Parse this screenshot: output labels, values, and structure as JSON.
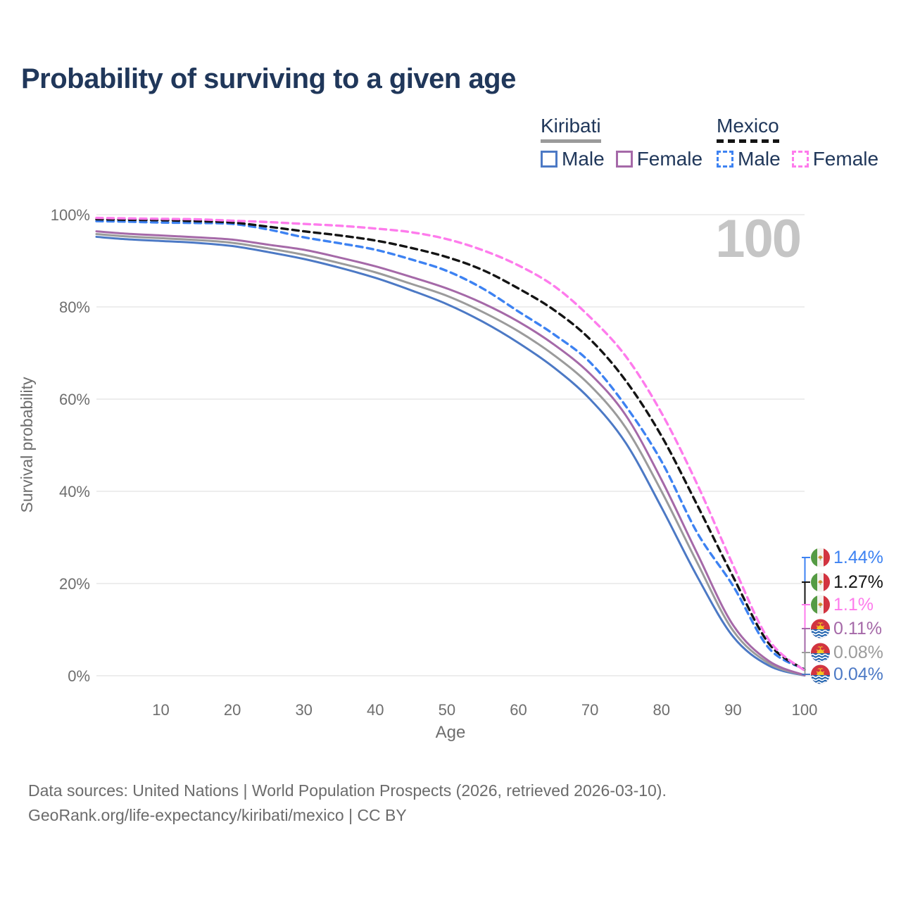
{
  "title": "Probability of surviving to a given age",
  "watermark_age": "100",
  "legend": {
    "groups": [
      {
        "country": "Kiribati",
        "style": "solid",
        "underline_color": "#9b9b9b",
        "items": [
          {
            "label": "Male",
            "color": "#4c79c5"
          },
          {
            "label": "Female",
            "color": "#a569a8"
          }
        ]
      },
      {
        "country": "Mexico",
        "style": "dashed",
        "underline_color": "#141414",
        "items": [
          {
            "label": "Male",
            "color": "#3d82f2"
          },
          {
            "label": "Female",
            "color": "#fe7bec"
          }
        ]
      }
    ]
  },
  "axes": {
    "y_label": "Survival probability",
    "x_label": "Age",
    "y_ticks": [
      "100%",
      "80%",
      "60%",
      "40%",
      "20%",
      "0%"
    ],
    "x_ticks": [
      "10",
      "20",
      "30",
      "40",
      "50",
      "60",
      "70",
      "80",
      "90",
      "100"
    ]
  },
  "chart_data": {
    "type": "line",
    "title": "Probability of surviving to a given age",
    "xlabel": "Age",
    "ylabel": "Survival probability",
    "xlim": [
      1,
      100
    ],
    "ylim": [
      0,
      100
    ],
    "grid": "horizontal",
    "legend_position": "top-right",
    "x": [
      1,
      5,
      10,
      15,
      20,
      25,
      30,
      35,
      40,
      45,
      50,
      55,
      60,
      65,
      70,
      75,
      80,
      85,
      90,
      95,
      100
    ],
    "series": [
      {
        "id": "kiribati-male",
        "name": "Kiribati Male",
        "color": "#4c79c5",
        "dashed": false,
        "values": [
          95.2,
          94.7,
          94.3,
          93.9,
          93.2,
          91.9,
          90.4,
          88.5,
          86.3,
          83.6,
          80.6,
          76.8,
          72.2,
          66.8,
          60.0,
          50.5,
          36.5,
          21.5,
          8.5,
          2.2,
          0.04
        ]
      },
      {
        "id": "kiribati-total",
        "name": "Kiribati",
        "color": "#9b9b9b",
        "dashed": false,
        "values": [
          95.8,
          95.3,
          94.9,
          94.5,
          93.9,
          92.7,
          91.3,
          89.5,
          87.5,
          85.0,
          82.4,
          78.9,
          74.7,
          69.5,
          63.0,
          53.8,
          40.0,
          24.5,
          9.8,
          2.7,
          0.08
        ]
      },
      {
        "id": "kiribati-female",
        "name": "Kiribati Female",
        "color": "#a569a8",
        "dashed": false,
        "values": [
          96.4,
          95.9,
          95.5,
          95.1,
          94.6,
          93.5,
          92.4,
          90.7,
          88.8,
          86.5,
          84.0,
          80.8,
          76.8,
          71.8,
          65.5,
          56.5,
          42.5,
          26.5,
          11.0,
          3.2,
          0.11
        ]
      },
      {
        "id": "mexico-male",
        "name": "Mexico Male",
        "color": "#3d82f2",
        "dashed": true,
        "values": [
          98.6,
          98.5,
          98.3,
          98.2,
          98.0,
          96.8,
          95.1,
          93.8,
          92.4,
          90.3,
          87.8,
          84.0,
          79.0,
          74.0,
          68.0,
          58.5,
          46.5,
          31.0,
          19.5,
          6.0,
          1.44
        ]
      },
      {
        "id": "mexico-total",
        "name": "Mexico",
        "color": "#141414",
        "dashed": true,
        "values": [
          99.0,
          98.9,
          98.8,
          98.6,
          98.3,
          97.4,
          96.4,
          95.5,
          94.4,
          92.8,
          90.8,
          88.0,
          84.0,
          79.3,
          73.0,
          64.0,
          52.0,
          37.0,
          21.5,
          7.0,
          1.27
        ]
      },
      {
        "id": "mexico-female",
        "name": "Mexico Female",
        "color": "#fe7bec",
        "dashed": true,
        "values": [
          99.3,
          99.2,
          99.1,
          99.0,
          98.7,
          98.4,
          98.0,
          97.6,
          97.0,
          96.2,
          94.7,
          92.3,
          89.0,
          84.5,
          77.8,
          69.3,
          57.0,
          41.5,
          24.0,
          7.8,
          1.1
        ]
      }
    ]
  },
  "end_labels": [
    {
      "value": "1.44%",
      "color": "#3d82f2",
      "flag": "mexico"
    },
    {
      "value": "1.27%",
      "color": "#141414",
      "flag": "mexico"
    },
    {
      "value": "1.1%",
      "color": "#fe7bec",
      "flag": "mexico"
    },
    {
      "value": "0.11%",
      "color": "#a569a8",
      "flag": "kiribati"
    },
    {
      "value": "0.08%",
      "color": "#9b9b9b",
      "flag": "kiribati"
    },
    {
      "value": "0.04%",
      "color": "#4c79c5",
      "flag": "kiribati"
    }
  ],
  "footer": {
    "line1": "Data sources: United Nations | World Population Prospects (2026, retrieved 2026-03-10).",
    "line2": "GeoRank.org/life-expectancy/kiribati/mexico | CC BY"
  }
}
